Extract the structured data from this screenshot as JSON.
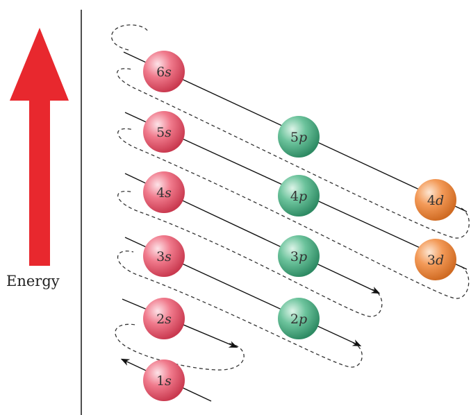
{
  "axis": {
    "label": "Energy",
    "arrow_color": "#e8282e"
  },
  "colors": {
    "s": "#ee6a7e",
    "p": "#5bb58f",
    "d": "#f19250"
  },
  "orbitals": [
    {
      "id": "1s",
      "n": "1",
      "l": "s"
    },
    {
      "id": "2s",
      "n": "2",
      "l": "s"
    },
    {
      "id": "3s",
      "n": "3",
      "l": "s"
    },
    {
      "id": "4s",
      "n": "4",
      "l": "s"
    },
    {
      "id": "5s",
      "n": "5",
      "l": "s"
    },
    {
      "id": "6s",
      "n": "6",
      "l": "s"
    },
    {
      "id": "2p",
      "n": "2",
      "l": "p"
    },
    {
      "id": "3p",
      "n": "3",
      "l": "p"
    },
    {
      "id": "4p",
      "n": "4",
      "l": "p"
    },
    {
      "id": "5p",
      "n": "5",
      "l": "p"
    },
    {
      "id": "3d",
      "n": "3",
      "l": "d"
    },
    {
      "id": "4d",
      "n": "4",
      "l": "d"
    }
  ]
}
